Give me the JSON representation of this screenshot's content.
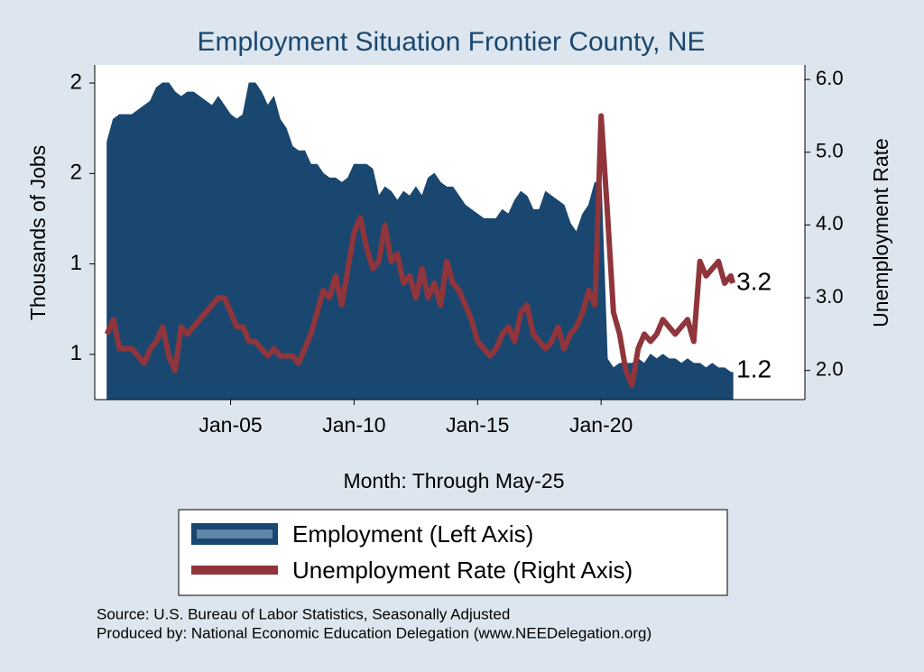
{
  "chart_data": {
    "type": "area",
    "title": "Employment Situation Frontier  County, NE",
    "x_label": "Month: Through May-25",
    "y_label": "Thousands of Jobs",
    "y2_label": "Unemployment Rate",
    "sources": [
      "Source: U.S. Bureau of Labor Statistics, Seasonally Adjusted",
      "Produced by: National Economic Education Delegation (www.NEEDelegation.org)"
    ],
    "categories": [
      "Jan-00",
      "Apr-00",
      "Jul-00",
      "Oct-00",
      "Jan-01",
      "Apr-01",
      "Jul-01",
      "Oct-01",
      "Jan-02",
      "Apr-02",
      "Jul-02",
      "Oct-02",
      "Jan-03",
      "Apr-03",
      "Jul-03",
      "Oct-03",
      "Jan-04",
      "Apr-04",
      "Jul-04",
      "Oct-04",
      "Jan-05",
      "Apr-05",
      "Jul-05",
      "Oct-05",
      "Jan-06",
      "Apr-06",
      "Jul-06",
      "Oct-06",
      "Jan-07",
      "Apr-07",
      "Jul-07",
      "Oct-07",
      "Jan-08",
      "Apr-08",
      "Jul-08",
      "Oct-08",
      "Jan-09",
      "Apr-09",
      "Jul-09",
      "Oct-09",
      "Jan-10",
      "Apr-10",
      "Jul-10",
      "Oct-10",
      "Jan-11",
      "Apr-11",
      "Jul-11",
      "Oct-11",
      "Jan-12",
      "Apr-12",
      "Jul-12",
      "Oct-12",
      "Jan-13",
      "Apr-13",
      "Jul-13",
      "Oct-13",
      "Jan-14",
      "Apr-14",
      "Jul-14",
      "Oct-14",
      "Jan-15",
      "Apr-15",
      "Jul-15",
      "Oct-15",
      "Jan-16",
      "Apr-16",
      "Jul-16",
      "Oct-16",
      "Jan-17",
      "Apr-17",
      "Jul-17",
      "Oct-17",
      "Jan-18",
      "Apr-18",
      "Jul-18",
      "Oct-18",
      "Jan-19",
      "Apr-19",
      "Jul-19",
      "Oct-19",
      "Jan-20",
      "Apr-20",
      "Jul-20",
      "Oct-20",
      "Jan-21",
      "Apr-21",
      "Jul-21",
      "Oct-21",
      "Jan-22",
      "Apr-22",
      "Jul-22",
      "Oct-22",
      "Jan-23",
      "Apr-23",
      "Jul-23",
      "Oct-23",
      "Jan-24",
      "Apr-24",
      "Jul-24",
      "Oct-24",
      "Jan-25",
      "Apr-25",
      "May-25"
    ],
    "series": [
      {
        "name": "Employment (Left Axis)",
        "type": "area",
        "axis": "y",
        "color": "#1a476f",
        "values": [
          1.67,
          1.72,
          1.73,
          1.73,
          1.73,
          1.74,
          1.75,
          1.76,
          1.79,
          1.8,
          1.8,
          1.78,
          1.77,
          1.78,
          1.78,
          1.77,
          1.76,
          1.75,
          1.77,
          1.75,
          1.73,
          1.72,
          1.73,
          1.8,
          1.8,
          1.78,
          1.75,
          1.77,
          1.72,
          1.7,
          1.66,
          1.65,
          1.65,
          1.62,
          1.62,
          1.6,
          1.59,
          1.59,
          1.58,
          1.59,
          1.62,
          1.62,
          1.62,
          1.61,
          1.55,
          1.57,
          1.56,
          1.54,
          1.56,
          1.55,
          1.57,
          1.55,
          1.59,
          1.6,
          1.58,
          1.57,
          1.57,
          1.55,
          1.53,
          1.52,
          1.51,
          1.5,
          1.5,
          1.5,
          1.52,
          1.51,
          1.54,
          1.56,
          1.55,
          1.52,
          1.52,
          1.56,
          1.55,
          1.54,
          1.53,
          1.49,
          1.47,
          1.51,
          1.53,
          1.58,
          1.58,
          1.19,
          1.17,
          1.18,
          1.18,
          1.18,
          1.19,
          1.18,
          1.2,
          1.19,
          1.2,
          1.19,
          1.19,
          1.18,
          1.19,
          1.18,
          1.18,
          1.17,
          1.18,
          1.17,
          1.17,
          1.16,
          1.16
        ],
        "value_labels": [
          null,
          null,
          null,
          null,
          null,
          null,
          null,
          null,
          null,
          null,
          null,
          null,
          null,
          null,
          null,
          null,
          null,
          null,
          null,
          null,
          null,
          null,
          null,
          null,
          null,
          null,
          null,
          null,
          null,
          null,
          null,
          null,
          null,
          null,
          null,
          null,
          null,
          null,
          null,
          null,
          null,
          null,
          null,
          null,
          null,
          null,
          null,
          null,
          null,
          null,
          null,
          null,
          null,
          null,
          null,
          null,
          null,
          null,
          null,
          null,
          null,
          null,
          null,
          null,
          null,
          null,
          null,
          null,
          null,
          null,
          null,
          null,
          null,
          null,
          null,
          null,
          null,
          null,
          null,
          null,
          null,
          null,
          null,
          null,
          null,
          null,
          null,
          null,
          null,
          null,
          null,
          null,
          null,
          null,
          null,
          null,
          null,
          null,
          null,
          null,
          null,
          null,
          "1.2"
        ]
      },
      {
        "name": "Unemployment Rate (Right Axis)",
        "type": "line",
        "axis": "y2",
        "color": "#90353b",
        "values": [
          2.5,
          2.7,
          2.3,
          2.3,
          2.3,
          2.2,
          2.1,
          2.3,
          2.4,
          2.6,
          2.2,
          2.0,
          2.6,
          2.5,
          2.6,
          2.7,
          2.8,
          2.9,
          3.0,
          3.0,
          2.8,
          2.6,
          2.6,
          2.4,
          2.4,
          2.3,
          2.2,
          2.3,
          2.2,
          2.2,
          2.2,
          2.1,
          2.3,
          2.5,
          2.8,
          3.1,
          3.0,
          3.3,
          2.9,
          3.4,
          3.9,
          4.1,
          3.7,
          3.4,
          3.5,
          4.0,
          3.5,
          3.6,
          3.2,
          3.3,
          3.0,
          3.4,
          3.0,
          3.2,
          2.9,
          3.5,
          3.2,
          3.1,
          2.9,
          2.7,
          2.4,
          2.3,
          2.2,
          2.3,
          2.5,
          2.6,
          2.4,
          2.8,
          2.9,
          2.5,
          2.4,
          2.3,
          2.4,
          2.6,
          2.3,
          2.5,
          2.6,
          2.8,
          3.1,
          2.9,
          5.5,
          4.2,
          2.8,
          2.5,
          2.0,
          1.8,
          2.3,
          2.5,
          2.4,
          2.5,
          2.7,
          2.6,
          2.5,
          2.6,
          2.7,
          2.4,
          3.5,
          3.3,
          3.4,
          3.5,
          3.2,
          3.3,
          3.2
        ]
      }
    ],
    "xlim": [
      "Jul-99",
      "Apr-28"
    ],
    "xticks": [
      "Jan-05",
      "Jan-10",
      "Jan-15",
      "Jan-20"
    ],
    "ylim": [
      1.1,
      1.84
    ],
    "yticks": [
      {
        "value": 1.2,
        "label": "1"
      },
      {
        "value": 1.4,
        "label": "1"
      },
      {
        "value": 1.6,
        "label": "2"
      },
      {
        "value": 1.8,
        "label": "2"
      }
    ],
    "y2lim": [
      1.6,
      6.2
    ],
    "y2ticks": [
      {
        "value": 2,
        "label": "2.0"
      },
      {
        "value": 3,
        "label": "3.0"
      },
      {
        "value": 4,
        "label": "4.0"
      },
      {
        "value": 5,
        "label": "5.0"
      },
      {
        "value": 6,
        "label": "6.0"
      }
    ]
  }
}
